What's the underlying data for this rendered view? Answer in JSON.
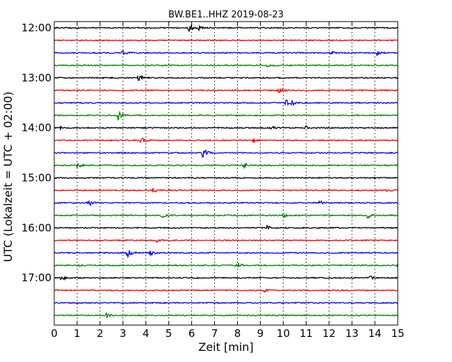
{
  "chart_data": {
    "type": "line",
    "title": "BW.BE1..HHZ 2019-08-23",
    "xlabel": "Zeit  [min]",
    "ylabel": "UTC (Lokalzeit = UTC + 02:00)",
    "xlim": [
      0,
      15
    ],
    "x_ticks": [
      "0",
      "1",
      "2",
      "3",
      "4",
      "5",
      "6",
      "7",
      "8",
      "9",
      "10",
      "11",
      "12",
      "13",
      "14",
      "15"
    ],
    "y_tick_labels": [
      "12:00",
      "13:00",
      "14:00",
      "15:00",
      "16:00",
      "17:00"
    ],
    "trace_start": "12:00",
    "trace_interval_min": 15,
    "colors": [
      "#000000",
      "#ff0000",
      "#0000ff",
      "#008000"
    ],
    "grid": "vertical-dotted",
    "traces": [
      {
        "start": "12:00",
        "color": "#000000",
        "events": [
          {
            "t": 5.9,
            "amp": 7
          },
          {
            "t": 6.3,
            "amp": 4
          }
        ]
      },
      {
        "start": "12:15",
        "color": "#ff0000",
        "events": []
      },
      {
        "start": "12:30",
        "color": "#0000ff",
        "events": [
          {
            "t": 3.0,
            "amp": 3
          },
          {
            "t": 12.1,
            "amp": 3
          },
          {
            "t": 14.1,
            "amp": 3
          }
        ]
      },
      {
        "start": "12:45",
        "color": "#008000",
        "events": [
          {
            "t": 9.3,
            "amp": 3
          }
        ]
      },
      {
        "start": "13:00",
        "color": "#000000",
        "events": [
          {
            "t": 3.7,
            "amp": 6
          }
        ]
      },
      {
        "start": "13:15",
        "color": "#ff0000",
        "events": [
          {
            "t": 9.8,
            "amp": 4
          }
        ]
      },
      {
        "start": "13:30",
        "color": "#0000ff",
        "events": [
          {
            "t": 10.1,
            "amp": 6
          },
          {
            "t": 10.4,
            "amp": 4
          }
        ]
      },
      {
        "start": "13:45",
        "color": "#008000",
        "events": [
          {
            "t": 2.8,
            "amp": 7
          }
        ]
      },
      {
        "start": "14:00",
        "color": "#000000",
        "events": [
          {
            "t": 0.3,
            "amp": 4
          },
          {
            "t": 11.0,
            "amp": 3
          },
          {
            "t": 9.5,
            "amp": 3
          }
        ]
      },
      {
        "start": "14:15",
        "color": "#ff0000",
        "events": [
          {
            "t": 3.8,
            "amp": 5
          },
          {
            "t": 8.7,
            "amp": 3
          }
        ]
      },
      {
        "start": "14:30",
        "color": "#0000ff",
        "events": [
          {
            "t": 6.5,
            "amp": 8
          }
        ]
      },
      {
        "start": "14:45",
        "color": "#008000",
        "events": [
          {
            "t": 1.0,
            "amp": 4
          },
          {
            "t": 8.3,
            "amp": 4
          }
        ]
      },
      {
        "start": "15:00",
        "color": "#000000",
        "events": []
      },
      {
        "start": "15:15",
        "color": "#ff0000",
        "events": [
          {
            "t": 4.3,
            "amp": 5
          },
          {
            "t": 14.5,
            "amp": 2
          }
        ]
      },
      {
        "start": "15:30",
        "color": "#0000ff",
        "events": [
          {
            "t": 1.5,
            "amp": 5
          },
          {
            "t": 11.6,
            "amp": 3
          }
        ]
      },
      {
        "start": "15:45",
        "color": "#008000",
        "events": [
          {
            "t": 4.7,
            "amp": 4
          },
          {
            "t": 10.0,
            "amp": 3
          },
          {
            "t": 13.7,
            "amp": 4
          }
        ]
      },
      {
        "start": "16:00",
        "color": "#000000",
        "events": [
          {
            "t": 9.3,
            "amp": 3
          }
        ]
      },
      {
        "start": "16:15",
        "color": "#ff0000",
        "events": [
          {
            "t": 4.5,
            "amp": 3
          }
        ]
      },
      {
        "start": "16:30",
        "color": "#0000ff",
        "events": [
          {
            "t": 3.2,
            "amp": 8
          },
          {
            "t": 4.2,
            "amp": 6
          }
        ]
      },
      {
        "start": "16:45",
        "color": "#008000",
        "events": [
          {
            "t": 1.0,
            "amp": 4
          },
          {
            "t": 8.0,
            "amp": 5
          },
          {
            "t": 15.0,
            "amp": 3
          }
        ]
      },
      {
        "start": "17:00",
        "color": "#000000",
        "events": [
          {
            "t": 0.3,
            "amp": 6
          },
          {
            "t": 13.8,
            "amp": 3
          }
        ]
      },
      {
        "start": "17:15",
        "color": "#ff0000",
        "events": [
          {
            "t": 9.2,
            "amp": 4
          }
        ]
      },
      {
        "start": "17:30",
        "color": "#0000ff",
        "events": []
      },
      {
        "start": "17:45",
        "color": "#008000",
        "events": [
          {
            "t": 2.3,
            "amp": 5
          }
        ]
      }
    ]
  }
}
